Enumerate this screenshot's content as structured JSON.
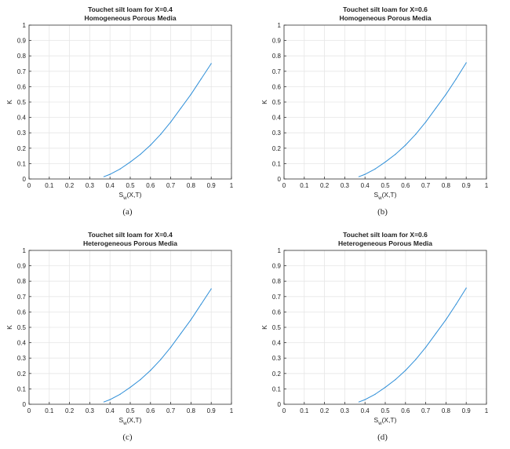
{
  "chart_data": [
    {
      "type": "line",
      "title": "Touchet silt loam for X=0.4",
      "subtitle": "Homogeneous Porous Media",
      "xlabel": "S_w(X,T)",
      "ylabel": "K",
      "xlim": [
        0,
        1
      ],
      "ylim": [
        0,
        1
      ],
      "xticks": [
        "0",
        "0.1",
        "0.2",
        "0.3",
        "0.4",
        "0.5",
        "0.6",
        "0.7",
        "0.8",
        "0.9",
        "1"
      ],
      "yticks": [
        "0",
        "0.1",
        "0.2",
        "0.3",
        "0.4",
        "0.5",
        "0.6",
        "0.7",
        "0.8",
        "0.9",
        "1"
      ],
      "grid": true,
      "caption": "(a)",
      "series": [
        {
          "x": [
            0.37,
            0.4,
            0.45,
            0.5,
            0.55,
            0.6,
            0.65,
            0.7,
            0.75,
            0.8,
            0.85,
            0.9
          ],
          "y": [
            0.015,
            0.03,
            0.065,
            0.11,
            0.16,
            0.22,
            0.29,
            0.37,
            0.46,
            0.55,
            0.65,
            0.75
          ]
        }
      ]
    },
    {
      "type": "line",
      "title": "Touchet silt loam for X=0.6",
      "subtitle": "Homogeneous Porous Media",
      "xlabel": "S_w(X,T)",
      "ylabel": "K",
      "xlim": [
        0,
        1
      ],
      "ylim": [
        0,
        1
      ],
      "xticks": [
        "0",
        "0.1",
        "0.2",
        "0.3",
        "0.4",
        "0.5",
        "0.6",
        "0.7",
        "0.8",
        "0.9",
        "1"
      ],
      "yticks": [
        "0",
        "0.1",
        "0.2",
        "0.3",
        "0.4",
        "0.5",
        "0.6",
        "0.7",
        "0.8",
        "0.9",
        "1"
      ],
      "grid": true,
      "caption": "(b)",
      "series": [
        {
          "x": [
            0.37,
            0.4,
            0.45,
            0.5,
            0.55,
            0.6,
            0.65,
            0.7,
            0.75,
            0.8,
            0.85,
            0.9
          ],
          "y": [
            0.015,
            0.03,
            0.065,
            0.11,
            0.16,
            0.22,
            0.29,
            0.37,
            0.46,
            0.55,
            0.65,
            0.755
          ]
        }
      ]
    },
    {
      "type": "line",
      "title": "Touchet silt loam for X=0.4",
      "subtitle": "Heterogeneous Porous Media",
      "xlabel": "S_w(X,T)",
      "ylabel": "K",
      "xlim": [
        0,
        1
      ],
      "ylim": [
        0,
        1
      ],
      "xticks": [
        "0",
        "0.1",
        "0.2",
        "0.3",
        "0.4",
        "0.5",
        "0.6",
        "0.7",
        "0.8",
        "0.9",
        "1"
      ],
      "yticks": [
        "0",
        "0.1",
        "0.2",
        "0.3",
        "0.4",
        "0.5",
        "0.6",
        "0.7",
        "0.8",
        "0.9",
        "1"
      ],
      "grid": true,
      "caption": "(c)",
      "series": [
        {
          "x": [
            0.37,
            0.4,
            0.45,
            0.5,
            0.55,
            0.6,
            0.65,
            0.7,
            0.75,
            0.8,
            0.85,
            0.9
          ],
          "y": [
            0.015,
            0.03,
            0.065,
            0.11,
            0.16,
            0.22,
            0.29,
            0.37,
            0.46,
            0.55,
            0.65,
            0.75
          ]
        }
      ]
    },
    {
      "type": "line",
      "title": "Touchet silt loam for X=0.6",
      "subtitle": "Heterogeneous Porous Media",
      "xlabel": "S_w(X,T)",
      "ylabel": "K",
      "xlim": [
        0,
        1
      ],
      "ylim": [
        0,
        1
      ],
      "xticks": [
        "0",
        "0.1",
        "0.2",
        "0.3",
        "0.4",
        "0.5",
        "0.6",
        "0.7",
        "0.8",
        "0.9",
        "1"
      ],
      "yticks": [
        "0",
        "0.1",
        "0.2",
        "0.3",
        "0.4",
        "0.5",
        "0.6",
        "0.7",
        "0.8",
        "0.9",
        "1"
      ],
      "grid": true,
      "caption": "(d)",
      "series": [
        {
          "x": [
            0.37,
            0.4,
            0.45,
            0.5,
            0.55,
            0.6,
            0.65,
            0.7,
            0.75,
            0.8,
            0.85,
            0.9
          ],
          "y": [
            0.015,
            0.03,
            0.065,
            0.11,
            0.16,
            0.22,
            0.29,
            0.37,
            0.46,
            0.55,
            0.65,
            0.755
          ]
        }
      ]
    }
  ],
  "colors": {
    "line": "#2f8fd8",
    "grid": "#e6e6e6",
    "axis": "#333333",
    "text": "#222222"
  }
}
